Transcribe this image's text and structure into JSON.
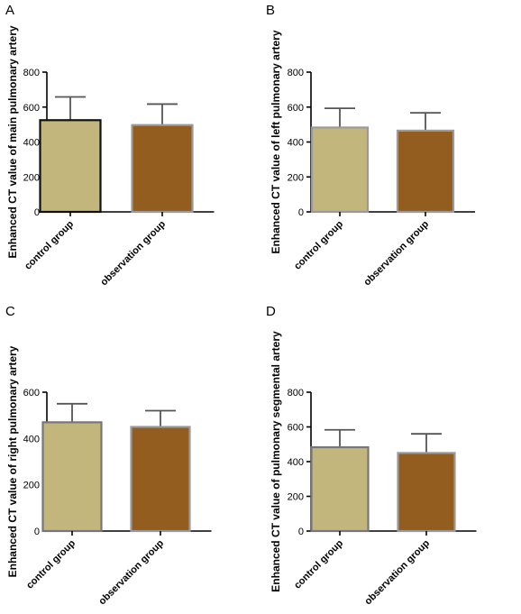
{
  "chart_data": [
    {
      "type": "bar",
      "panel": "A",
      "ylabel": "Enhanced CT value of main pulmonary artery",
      "categories": [
        "control group",
        "observation group"
      ],
      "values": [
        525,
        497
      ],
      "errors": [
        133,
        120
      ],
      "ylim": [
        0,
        800
      ],
      "yticks": [
        0,
        200,
        400,
        600,
        800
      ],
      "colors": [
        "#c2b67c",
        "#925d1e"
      ],
      "edge_colors": [
        "#111111",
        "#9a9a9a"
      ]
    },
    {
      "type": "bar",
      "panel": "B",
      "ylabel": "Enhanced CT value of left pulmonary artery",
      "categories": [
        "control group",
        "observation group"
      ],
      "values": [
        483,
        465
      ],
      "errors": [
        110,
        102
      ],
      "ylim": [
        0,
        800
      ],
      "yticks": [
        0,
        200,
        400,
        600,
        800
      ],
      "colors": [
        "#c2b67c",
        "#925d1e"
      ],
      "edge_colors": [
        "#9a9a9a",
        "#9a9a9a"
      ]
    },
    {
      "type": "bar",
      "panel": "C",
      "ylabel": "Enhanced CT value of right pulmonary artery",
      "categories": [
        "control group",
        "observation group"
      ],
      "values": [
        470,
        450
      ],
      "errors": [
        80,
        70
      ],
      "ylim": [
        0,
        600
      ],
      "yticks": [
        0,
        200,
        400,
        600
      ],
      "colors": [
        "#c2b67c",
        "#925d1e"
      ],
      "edge_colors": [
        "#777777",
        "#9a9a9a"
      ]
    },
    {
      "type": "bar",
      "panel": "D",
      "ylabel": "Enhanced CT value of pulmonary segmental artery",
      "categories": [
        "control group",
        "observation group"
      ],
      "values": [
        483,
        450
      ],
      "errors": [
        100,
        110
      ],
      "ylim": [
        0,
        800
      ],
      "yticks": [
        0,
        200,
        400,
        600,
        800
      ],
      "colors": [
        "#c2b67c",
        "#925d1e"
      ],
      "edge_colors": [
        "#777777",
        "#9a9a9a"
      ]
    }
  ]
}
